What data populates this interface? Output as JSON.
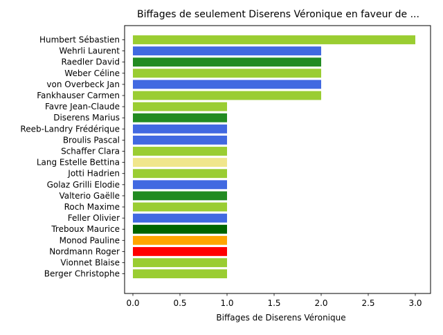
{
  "chart_data": {
    "type": "bar",
    "orientation": "horizontal",
    "title": "Biffages de seulement Diserens Véronique en faveur de ...",
    "xlabel": "Biffages de Diserens Véronique",
    "ylabel": "",
    "xlim": [
      0,
      3.15
    ],
    "xticks": [
      0.0,
      0.5,
      1.0,
      1.5,
      2.0,
      2.5,
      3.0
    ],
    "xtick_labels": [
      "0.0",
      "0.5",
      "1.0",
      "1.5",
      "2.0",
      "2.5",
      "3.0"
    ],
    "grid": false,
    "bars": [
      {
        "label": "Humbert Sébastien",
        "value": 3,
        "color": "#9acd32"
      },
      {
        "label": "Wehrli Laurent",
        "value": 2,
        "color": "#4169e1"
      },
      {
        "label": "Raedler David",
        "value": 2,
        "color": "#228b22"
      },
      {
        "label": "Weber Céline",
        "value": 2,
        "color": "#9acd32"
      },
      {
        "label": "von Overbeck Jan",
        "value": 2,
        "color": "#4169e1"
      },
      {
        "label": "Fankhauser Carmen",
        "value": 2,
        "color": "#9acd32"
      },
      {
        "label": "Favre Jean-Claude",
        "value": 1,
        "color": "#9acd32"
      },
      {
        "label": "Diserens Marius",
        "value": 1,
        "color": "#228b22"
      },
      {
        "label": "Reeb-Landry Frédérique",
        "value": 1,
        "color": "#4169e1"
      },
      {
        "label": "Broulis Pascal",
        "value": 1,
        "color": "#4169e1"
      },
      {
        "label": "Schaffer Clara",
        "value": 1,
        "color": "#9acd32"
      },
      {
        "label": "Lang Estelle Bettina",
        "value": 1,
        "color": "#f0e68c"
      },
      {
        "label": "Jotti Hadrien",
        "value": 1,
        "color": "#9acd32"
      },
      {
        "label": "Golaz Grilli Elodie",
        "value": 1,
        "color": "#4169e1"
      },
      {
        "label": "Valterio Gaëlle",
        "value": 1,
        "color": "#228b22"
      },
      {
        "label": "Roch Maxime",
        "value": 1,
        "color": "#9acd32"
      },
      {
        "label": "Feller Olivier",
        "value": 1,
        "color": "#4169e1"
      },
      {
        "label": "Treboux Maurice",
        "value": 1,
        "color": "#006400"
      },
      {
        "label": "Monod Pauline",
        "value": 1,
        "color": "#ffa500"
      },
      {
        "label": "Nordmann Roger",
        "value": 1,
        "color": "#ff0000"
      },
      {
        "label": "Vionnet Blaise",
        "value": 1,
        "color": "#9acd32"
      },
      {
        "label": "Berger Christophe",
        "value": 1,
        "color": "#9acd32"
      }
    ]
  }
}
